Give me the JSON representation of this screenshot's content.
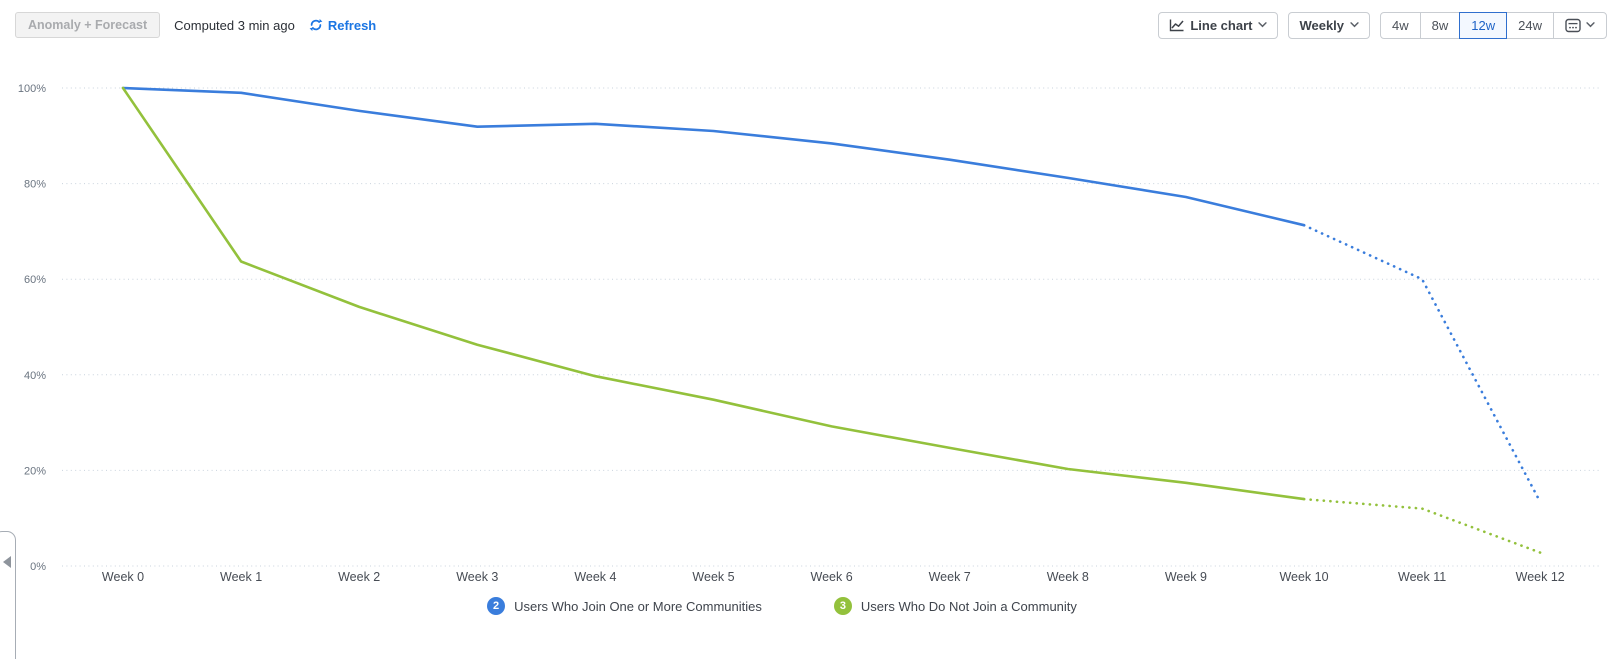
{
  "toolbar": {
    "anomaly_label": "Anomaly + Forecast",
    "computed_label": "Computed 3 min ago",
    "refresh_label": "Refresh",
    "chart_type_label": "Line chart",
    "interval_label": "Weekly",
    "ranges": [
      "4w",
      "8w",
      "12w",
      "24w"
    ],
    "selected_range": "12w"
  },
  "colors": {
    "link_blue": "#1b76e3",
    "selected_range_blue": "#1e63c6",
    "series_blue": "#3a7ddc",
    "series_green": "#93c13c"
  },
  "chart_data": {
    "type": "line",
    "x": [
      "Week 0",
      "Week 1",
      "Week 2",
      "Week 3",
      "Week 4",
      "Week 5",
      "Week 6",
      "Week 7",
      "Week 8",
      "Week 9",
      "Week 10",
      "Week 11",
      "Week 12"
    ],
    "y_ticks": [
      {
        "value": 0,
        "label": "0%"
      },
      {
        "value": 20,
        "label": "20%"
      },
      {
        "value": 40,
        "label": "40%"
      },
      {
        "value": 60,
        "label": "60%"
      },
      {
        "value": 80,
        "label": "80%"
      },
      {
        "value": 100,
        "label": "100%"
      }
    ],
    "ylim": [
      0,
      100
    ],
    "grid": "horizontal-dotted",
    "legend_position": "bottom-center",
    "forecast_start_index": 10,
    "forecast_style": "dotted",
    "series": [
      {
        "name": "Users Who Join One or More Communities",
        "badge": "2",
        "color": "#3a7ddc",
        "values": [
          100,
          99.0,
          95.2,
          91.9,
          92.5,
          91.0,
          88.4,
          85.0,
          81.2,
          77.2,
          71.3,
          60.0,
          13.4
        ]
      },
      {
        "name": "Users Who Do Not Join a Community",
        "badge": "3",
        "color": "#93c13c",
        "values": [
          100,
          63.7,
          54.2,
          46.3,
          39.7,
          34.8,
          29.2,
          24.7,
          20.3,
          17.4,
          14.0,
          12.0,
          2.8
        ]
      }
    ]
  }
}
